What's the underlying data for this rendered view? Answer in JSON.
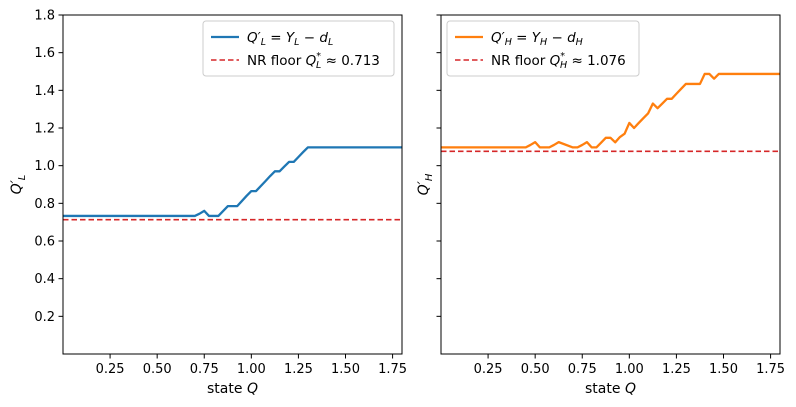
{
  "chart_data": [
    {
      "type": "line",
      "xlabel": "state Q",
      "ylabel": "Q′L",
      "xlim": [
        0.0,
        1.8
      ],
      "ylim": [
        0.0,
        1.8
      ],
      "xticks": [
        "0.25",
        "0.50",
        "0.75",
        "1.00",
        "1.25",
        "1.50",
        "1.75"
      ],
      "yticks": [
        "0.2",
        "0.4",
        "0.6",
        "0.8",
        "1.0",
        "1.2",
        "1.4",
        "1.6",
        "1.8"
      ],
      "grid": false,
      "legend_position": "top-right",
      "series": [
        {
          "name": "Q′L = YL − dL",
          "color": "#1f77b4",
          "style": "solid",
          "x": [
            0.0,
            0.7,
            0.725,
            0.75,
            0.775,
            0.825,
            0.875,
            0.925,
            0.975,
            1.0,
            1.025,
            1.075,
            1.1,
            1.125,
            1.15,
            1.175,
            1.2,
            1.225,
            1.25,
            1.275,
            1.3,
            1.325,
            1.8
          ],
          "y": [
            0.733,
            0.733,
            0.745,
            0.76,
            0.733,
            0.733,
            0.785,
            0.785,
            0.84,
            0.865,
            0.865,
            0.918,
            0.945,
            0.97,
            0.97,
            0.995,
            1.02,
            1.02,
            1.046,
            1.072,
            1.097,
            1.097,
            1.097
          ]
        },
        {
          "name": "NR floor Q*L ≈ 0.713",
          "color": "#d62728",
          "style": "dashed",
          "x": [
            0.0,
            1.8
          ],
          "y": [
            0.713,
            0.713
          ]
        }
      ]
    },
    {
      "type": "line",
      "xlabel": "state Q",
      "ylabel": "Q′H",
      "xlim": [
        0.0,
        1.8
      ],
      "ylim": [
        0.0,
        1.8
      ],
      "xticks": [
        "0.25",
        "0.50",
        "0.75",
        "1.00",
        "1.25",
        "1.50",
        "1.75"
      ],
      "yticks": [],
      "grid": false,
      "legend_position": "top-left",
      "series": [
        {
          "name": "Q′H = YH − dH",
          "color": "#ff7f0e",
          "style": "solid",
          "x": [
            0.0,
            0.45,
            0.475,
            0.5,
            0.525,
            0.575,
            0.6,
            0.625,
            0.7,
            0.725,
            0.75,
            0.775,
            0.8,
            0.825,
            0.85,
            0.875,
            0.9,
            0.925,
            0.95,
            0.975,
            1.0,
            1.025,
            1.05,
            1.075,
            1.1,
            1.125,
            1.15,
            1.175,
            1.2,
            1.225,
            1.25,
            1.275,
            1.3,
            1.325,
            1.375,
            1.4,
            1.425,
            1.45,
            1.475,
            1.5,
            1.8
          ],
          "y": [
            1.097,
            1.097,
            1.11,
            1.125,
            1.097,
            1.097,
            1.11,
            1.125,
            1.097,
            1.097,
            1.11,
            1.125,
            1.097,
            1.097,
            1.122,
            1.148,
            1.148,
            1.124,
            1.152,
            1.17,
            1.227,
            1.2,
            1.227,
            1.253,
            1.278,
            1.33,
            1.305,
            1.33,
            1.355,
            1.355,
            1.382,
            1.408,
            1.434,
            1.434,
            1.434,
            1.487,
            1.487,
            1.462,
            1.487,
            1.487,
            1.487
          ]
        },
        {
          "name": "NR floor Q*H ≈ 1.076",
          "color": "#d62728",
          "style": "dashed",
          "x": [
            0.0,
            1.8
          ],
          "y": [
            1.076,
            1.076
          ]
        }
      ]
    }
  ]
}
